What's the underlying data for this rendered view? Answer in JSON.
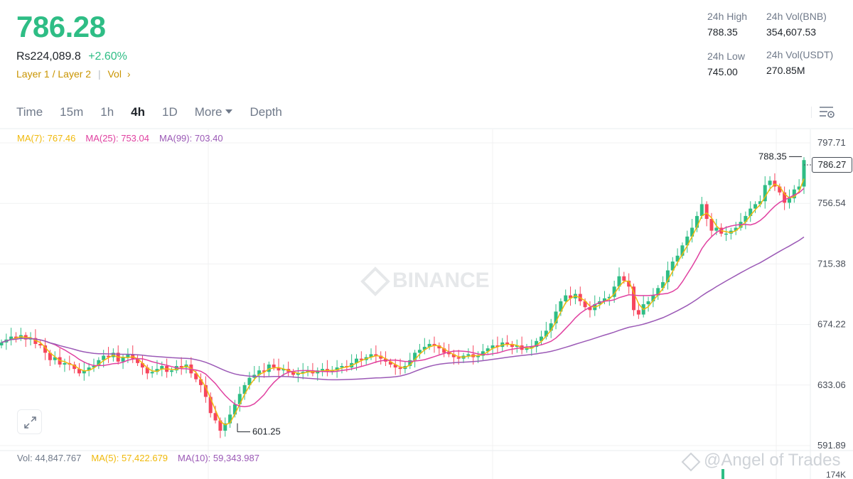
{
  "header": {
    "price": "786.28",
    "fiat_price": "Rs224,089.8",
    "change": "+2.60%",
    "tag1": "Layer 1 / Layer 2",
    "tag2": "Vol",
    "colors": {
      "up": "#2ebd85",
      "down": "#f6465d",
      "tag": "#c99400"
    }
  },
  "stats": {
    "high_label": "24h High",
    "high": "788.35",
    "vol_bnb_label": "24h Vol(BNB)",
    "vol_bnb": "354,607.53",
    "low_label": "24h Low",
    "low": "745.00",
    "vol_usdt_label": "24h Vol(USDT)",
    "vol_usdt": "270.85M"
  },
  "tabs": [
    "Time",
    "15m",
    "1h",
    "4h",
    "1D",
    "More",
    "Depth"
  ],
  "active_tab": "4h",
  "ma_legend": {
    "ma7": "MA(7): 767.46",
    "ma25": "MA(25): 753.04",
    "ma99": "MA(99): 703.40"
  },
  "vol_legend": {
    "vol": "Vol: 44,847.767",
    "ma5": "MA(5): 57,422.679",
    "ma10": "MA(10): 59,343.987"
  },
  "watermark": "BINANCE",
  "credit": "@Angel of Trades",
  "current_price_tag": "786.27",
  "chart_data": {
    "type": "candlestick",
    "y_ticks": [
      797.71,
      756.54,
      715.38,
      674.22,
      633.06,
      591.89
    ],
    "y_tick_labels": [
      "797.71",
      "756.54",
      "715.38",
      "674.22",
      "633.06",
      "591.89"
    ],
    "volume_tick_label": "174K",
    "high_marker": {
      "value": 788.35,
      "label": "788.35"
    },
    "low_marker": {
      "value": 601.25,
      "label": "601.25"
    },
    "close_series": [
      662,
      664,
      666,
      665,
      667,
      664,
      665,
      661,
      660,
      655,
      650,
      652,
      647,
      648,
      647,
      644,
      641,
      643,
      645,
      646,
      650,
      653,
      652,
      655,
      649,
      652,
      654,
      651,
      648,
      645,
      641,
      642,
      644,
      646,
      642,
      643,
      646,
      645,
      647,
      641,
      637,
      633,
      625,
      614,
      609,
      602,
      607,
      613,
      620,
      627,
      633,
      638,
      640,
      643,
      642,
      647,
      645,
      643,
      644,
      642,
      640,
      641,
      642,
      643,
      641,
      643,
      644,
      642,
      643,
      645,
      646,
      645,
      648,
      651,
      650,
      652,
      654,
      653,
      651,
      649,
      647,
      645,
      644,
      646,
      650,
      655,
      657,
      659,
      661,
      660,
      658,
      655,
      654,
      652,
      651,
      653,
      654,
      652,
      653,
      656,
      658,
      660,
      659,
      662,
      661,
      659,
      660,
      657,
      658,
      659,
      663,
      666,
      670,
      675,
      683,
      690,
      694,
      692,
      695,
      690,
      686,
      684,
      688,
      690,
      692,
      693,
      700,
      707,
      704,
      700,
      684,
      681,
      688,
      690,
      694,
      699,
      703,
      711,
      717,
      721,
      728,
      734,
      740,
      748,
      756,
      746,
      738,
      740,
      736,
      736,
      738,
      740,
      744,
      748,
      753,
      756,
      758,
      769,
      772,
      768,
      764,
      757,
      760,
      766,
      768,
      786
    ],
    "ma7_end": 767.46,
    "ma25_end": 753.04,
    "ma99_end": 703.4,
    "last_volume": 44847.767
  }
}
